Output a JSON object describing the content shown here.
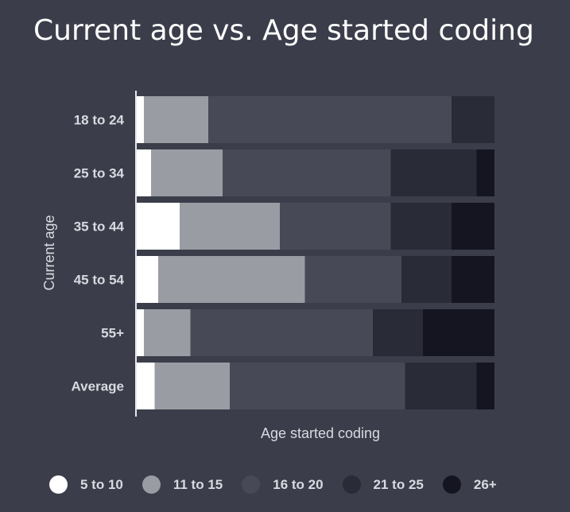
{
  "chart_data": {
    "type": "bar",
    "stacked": true,
    "normalized": true,
    "orientation": "horizontal",
    "title": "Current age vs. Age started coding",
    "xlabel": "Age started coding",
    "ylabel": "Current age",
    "categories": [
      "18 to 24",
      "25 to 34",
      "35 to 44",
      "45 to 54",
      "55+",
      "Average"
    ],
    "series": [
      {
        "name": "5 to 10",
        "color": "#ffffff",
        "values": [
          2,
          4,
          12,
          6,
          2,
          5
        ]
      },
      {
        "name": "11 to 15",
        "color": "#9a9ca3",
        "values": [
          18,
          20,
          28,
          41,
          13,
          21
        ]
      },
      {
        "name": "16 to 20",
        "color": "#474a56",
        "values": [
          68,
          47,
          31,
          27,
          51,
          49
        ]
      },
      {
        "name": "21 to 25",
        "color": "#292b36",
        "values": [
          12,
          24,
          17,
          14,
          14,
          20
        ]
      },
      {
        "name": "26+",
        "color": "#141520",
        "values": [
          0,
          5,
          12,
          12,
          20,
          5
        ]
      }
    ],
    "legend_position": "bottom",
    "grid": false
  }
}
